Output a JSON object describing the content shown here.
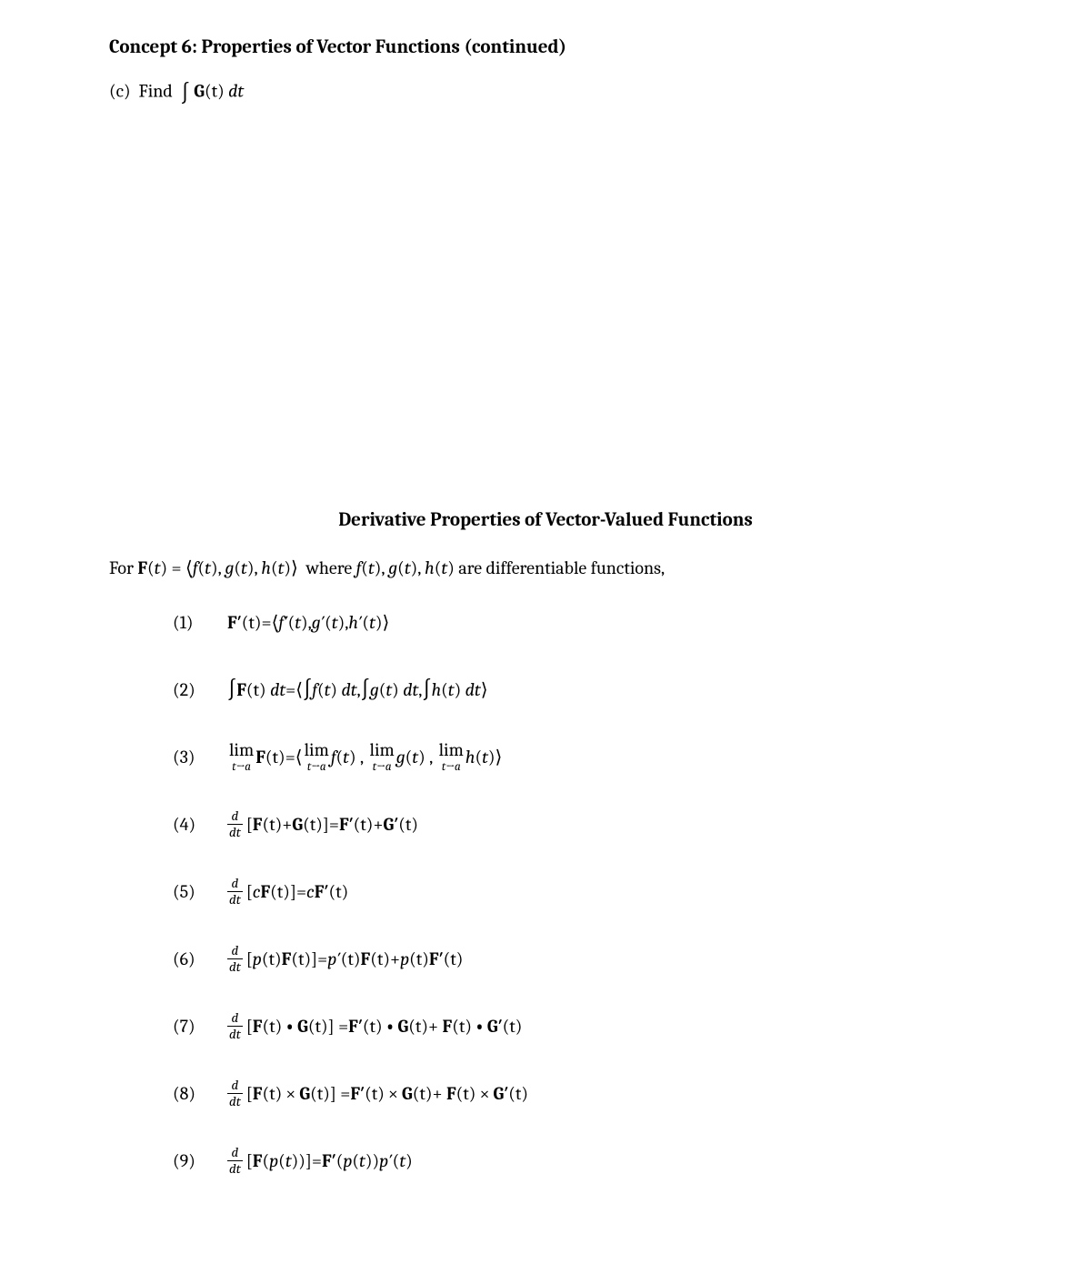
{
  "header": {
    "concept_title": "Concept 6:  Properties of Vector Functions (continued)",
    "part_label": "(c)",
    "part_text": "Find"
  },
  "section": {
    "title": "Derivative Properties of Vector-Valued Functions",
    "for_prefix": "For",
    "for_mid": "where",
    "for_suffix": "are differentiable functions,"
  },
  "symbols": {
    "F": "F",
    "G": "G",
    "Fp": "F′",
    "Gp": "G′",
    "f": "f",
    "g": "g",
    "h": "h",
    "fp": "f′",
    "gp": "g′",
    "hp": "h′",
    "p": "p",
    "pp": "p′",
    "t": "t",
    "c": "c",
    "a": "a",
    "d": "d",
    "dt": "dt",
    "lim": "lim",
    "eq": " = ",
    "plus": " + ",
    "comma": ", ",
    "lang": "⟨",
    "rang": "⟩",
    "lpar": "(",
    "rpar": ")",
    "lbrack": "[",
    "rbrack": "]",
    "arrow": "→",
    "dot": "•",
    "times": "×",
    "integral": "∫"
  },
  "props": {
    "n1": "(1)",
    "n2": "(2)",
    "n3": "(3)",
    "n4": "(4)",
    "n5": "(5)",
    "n6": "(6)",
    "n7": "(7)",
    "n8": "(8)",
    "n9": "(9)"
  },
  "style": {
    "text_color": "#000000",
    "background": "#ffffff",
    "body_fontsize": 20,
    "title_fontsize": 21,
    "frac_fontsize": 15,
    "sub_fontsize": 13
  }
}
